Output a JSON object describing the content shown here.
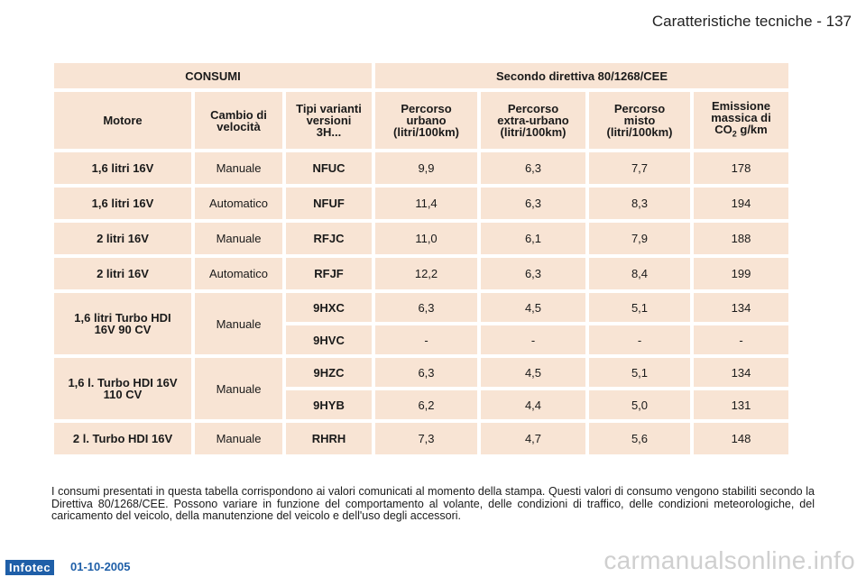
{
  "header": {
    "title": "Caratteristiche tecniche - 137"
  },
  "table": {
    "top_left": "CONSUMI",
    "top_right": "Secondo direttiva 80/1268/CEE",
    "col_headers": {
      "motore": "Motore",
      "cambio_1": "Cambio di",
      "cambio_2": "velocità",
      "tipi_1": "Tipi varianti",
      "tipi_2": "versioni",
      "tipi_3": "3H...",
      "urbano_1": "Percorso",
      "urbano_2": "urbano",
      "urbano_3": "(litri/100km)",
      "extra_1": "Percorso",
      "extra_2": "extra-urbano",
      "extra_3": "(litri/100km)",
      "misto_1": "Percorso",
      "misto_2": "misto",
      "misto_3": "(litri/100km)",
      "emiss_1": "Emissione",
      "emiss_2": "massica di",
      "emiss_3a": "CO",
      "emiss_3sub": "2",
      "emiss_3b": " g/km"
    },
    "rows": [
      {
        "motore": "1,6 litri 16V",
        "cambio": "Manuale",
        "tipo": "NFUC",
        "urbano": "9,9",
        "extra": "6,3",
        "misto": "7,7",
        "emiss": "178"
      },
      {
        "motore": "1,6 litri 16V",
        "cambio": "Automatico",
        "tipo": "NFUF",
        "urbano": "11,4",
        "extra": "6,3",
        "misto": "8,3",
        "emiss": "194"
      },
      {
        "motore": "2 litri 16V",
        "cambio": "Manuale",
        "tipo": "RFJC",
        "urbano": "11,0",
        "extra": "6,1",
        "misto": "7,9",
        "emiss": "188"
      },
      {
        "motore": "2 litri 16V",
        "cambio": "Automatico",
        "tipo": "RFJF",
        "urbano": "12,2",
        "extra": "6,3",
        "misto": "8,4",
        "emiss": "199"
      }
    ],
    "group_a": {
      "motore_1": "1,6 litri Turbo HDI",
      "motore_2": "16V 90 CV",
      "cambio": "Manuale",
      "sub": [
        {
          "tipo": "9HXC",
          "urbano": "6,3",
          "extra": "4,5",
          "misto": "5,1",
          "emiss": "134"
        },
        {
          "tipo": "9HVC",
          "urbano": "-",
          "extra": "-",
          "misto": "-",
          "emiss": "-"
        }
      ]
    },
    "group_b": {
      "motore_1": "1,6 l. Turbo HDI 16V",
      "motore_2": "110 CV",
      "cambio": "Manuale",
      "sub": [
        {
          "tipo": "9HZC",
          "urbano": "6,3",
          "extra": "4,5",
          "misto": "5,1",
          "emiss": "134"
        },
        {
          "tipo": "9HYB",
          "urbano": "6,2",
          "extra": "4,4",
          "misto": "5,0",
          "emiss": "131"
        }
      ]
    },
    "last_row": {
      "motore": "2 l. Turbo HDI 16V",
      "cambio": "Manuale",
      "tipo": "RHRH",
      "urbano": "7,3",
      "extra": "4,7",
      "misto": "5,6",
      "emiss": "148"
    }
  },
  "note": "I consumi presentati in questa tabella corrispondono ai valori comunicati al momento della stampa. Questi valori di consumo vengono stabiliti secondo la Direttiva 80/1268/CEE. Possono variare in funzione del comportamento al volante, delle condizioni di traffico, delle condizioni meteorologiche, del caricamento del veicolo, della manutenzione del veicolo e dell'uso degli accessori.",
  "footer": {
    "logo": "Infotec",
    "date": "01-10-2005"
  },
  "watermark": "carmanualsonline.info"
}
